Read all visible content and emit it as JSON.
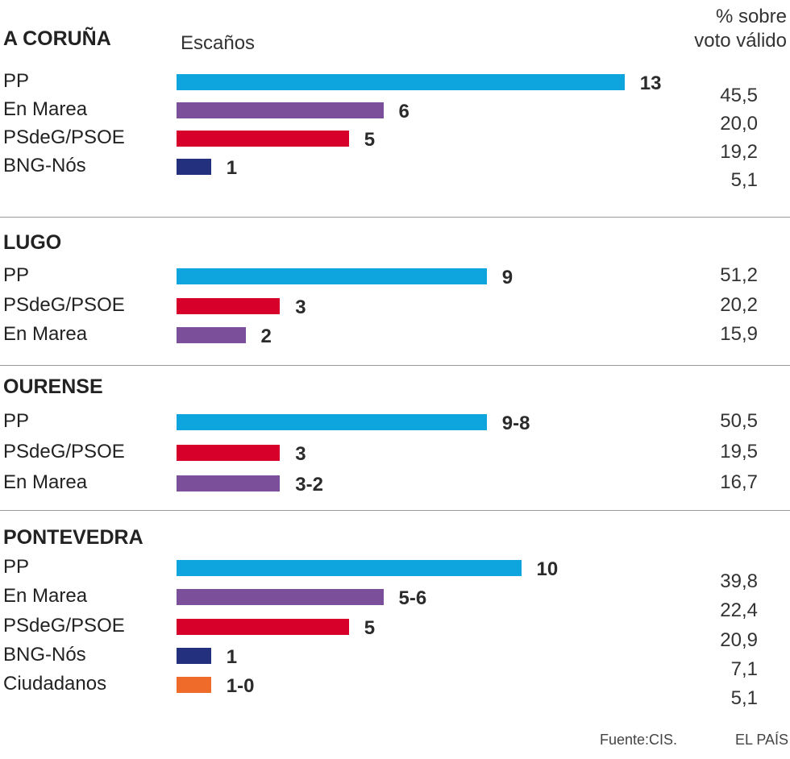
{
  "header": {
    "escanos_label": "Escaños",
    "pct_label_line1": "% sobre",
    "pct_label_line2": "voto válido"
  },
  "colors": {
    "PP": "#0ea5de",
    "En Marea": "#7b4f9a",
    "PSdeG/PSOE": "#d6002a",
    "BNG-Nós": "#23307e",
    "Ciudadanos": "#ef6b2a"
  },
  "chart_data": [
    {
      "type": "bar",
      "region": "A CORUÑA",
      "parties": [
        {
          "name": "PP",
          "seats": 13,
          "label": "13"
        },
        {
          "name": "En Marea",
          "seats": 6,
          "label": "6"
        },
        {
          "name": "PSdeG/PSOE",
          "seats": 5,
          "label": "5"
        },
        {
          "name": "BNG-Nós",
          "seats": 1,
          "label": "1"
        }
      ],
      "pct": [
        "45,5",
        "20,0",
        "19,2",
        "5,1"
      ]
    },
    {
      "type": "bar",
      "region": "LUGO",
      "parties": [
        {
          "name": "PP",
          "seats": 9,
          "label": "9"
        },
        {
          "name": "PSdeG/PSOE",
          "seats": 3,
          "label": "3"
        },
        {
          "name": "En Marea",
          "seats": 2,
          "label": "2"
        }
      ],
      "pct": [
        "51,2",
        "20,2",
        "15,9"
      ]
    },
    {
      "type": "bar",
      "region": "OURENSE",
      "parties": [
        {
          "name": "PP",
          "seats": 9,
          "label": "9-8"
        },
        {
          "name": "PSdeG/PSOE",
          "seats": 3,
          "label": "3"
        },
        {
          "name": "En Marea",
          "seats": 3,
          "label": "3-2"
        }
      ],
      "pct": [
        "50,5",
        "19,5",
        "16,7"
      ]
    },
    {
      "type": "bar",
      "region": "PONTEVEDRA",
      "parties": [
        {
          "name": "PP",
          "seats": 10,
          "label": "10"
        },
        {
          "name": "En Marea",
          "seats": 6,
          "label": "5-6"
        },
        {
          "name": "PSdeG/PSOE",
          "seats": 5,
          "label": "5"
        },
        {
          "name": "BNG-Nós",
          "seats": 1,
          "label": "1"
        },
        {
          "name": "Ciudadanos",
          "seats": 1,
          "label": "1-0"
        }
      ],
      "pct": [
        "39,8",
        "22,4",
        "20,9",
        "7,1",
        "5,1"
      ]
    }
  ],
  "footer": {
    "source": "Fuente:CIS.",
    "brand": "EL PAÍS"
  }
}
